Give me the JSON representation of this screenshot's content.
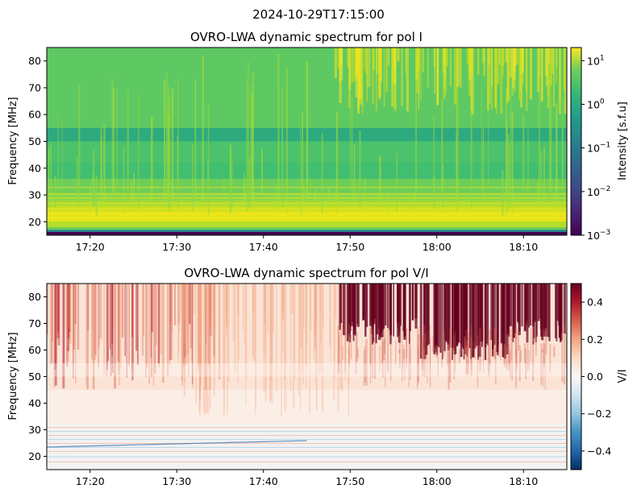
{
  "figure": {
    "suptitle": "2024-10-29T17:15:00"
  },
  "chart_data": [
    {
      "type": "heatmap",
      "title": "OVRO-LWA dynamic spectrum for pol I",
      "xlabel": "",
      "ylabel": "Frequency [MHz]",
      "x_ticks": [
        "17:20",
        "17:30",
        "17:40",
        "17:50",
        "18:00",
        "18:10"
      ],
      "x_tick_minutes": [
        20,
        30,
        40,
        50,
        60,
        70
      ],
      "xlim_minutes_after_17": [
        15,
        75
      ],
      "y_ticks": [
        20,
        30,
        40,
        50,
        60,
        70,
        80
      ],
      "ylim": [
        15,
        85
      ],
      "colorbar": {
        "label": "Intensity [s.f.u]",
        "scale": "log",
        "range": [
          0.001,
          20
        ],
        "ticks": [
          {
            "base": "10",
            "exp": "1",
            "value": 10
          },
          {
            "base": "10",
            "exp": "0",
            "value": 1
          },
          {
            "base": "10",
            "exp": "−1",
            "value": 0.1
          },
          {
            "base": "10",
            "exp": "−2",
            "value": 0.01
          },
          {
            "base": "10",
            "exp": "−3",
            "value": 0.001
          }
        ],
        "colormap": "viridis"
      }
    },
    {
      "type": "heatmap",
      "title": "OVRO-LWA dynamic spectrum for pol V/I",
      "xlabel": "",
      "ylabel": "Frequency [MHz]",
      "x_ticks": [
        "17:20",
        "17:30",
        "17:40",
        "17:50",
        "18:00",
        "18:10"
      ],
      "x_tick_minutes": [
        20,
        30,
        40,
        50,
        60,
        70
      ],
      "xlim_minutes_after_17": [
        15,
        75
      ],
      "y_ticks": [
        20,
        30,
        40,
        50,
        60,
        70,
        80
      ],
      "ylim": [
        15,
        85
      ],
      "colorbar": {
        "label": "V/I",
        "scale": "linear",
        "range": [
          -0.5,
          0.5
        ],
        "ticks": [
          {
            "label": "0.4",
            "value": 0.4
          },
          {
            "label": "0.2",
            "value": 0.2
          },
          {
            "label": "0.0",
            "value": 0.0
          },
          {
            "label": "−0.2",
            "value": -0.2
          },
          {
            "label": "−0.4",
            "value": -0.4
          }
        ],
        "colormap": "RdBu_r"
      }
    }
  ]
}
